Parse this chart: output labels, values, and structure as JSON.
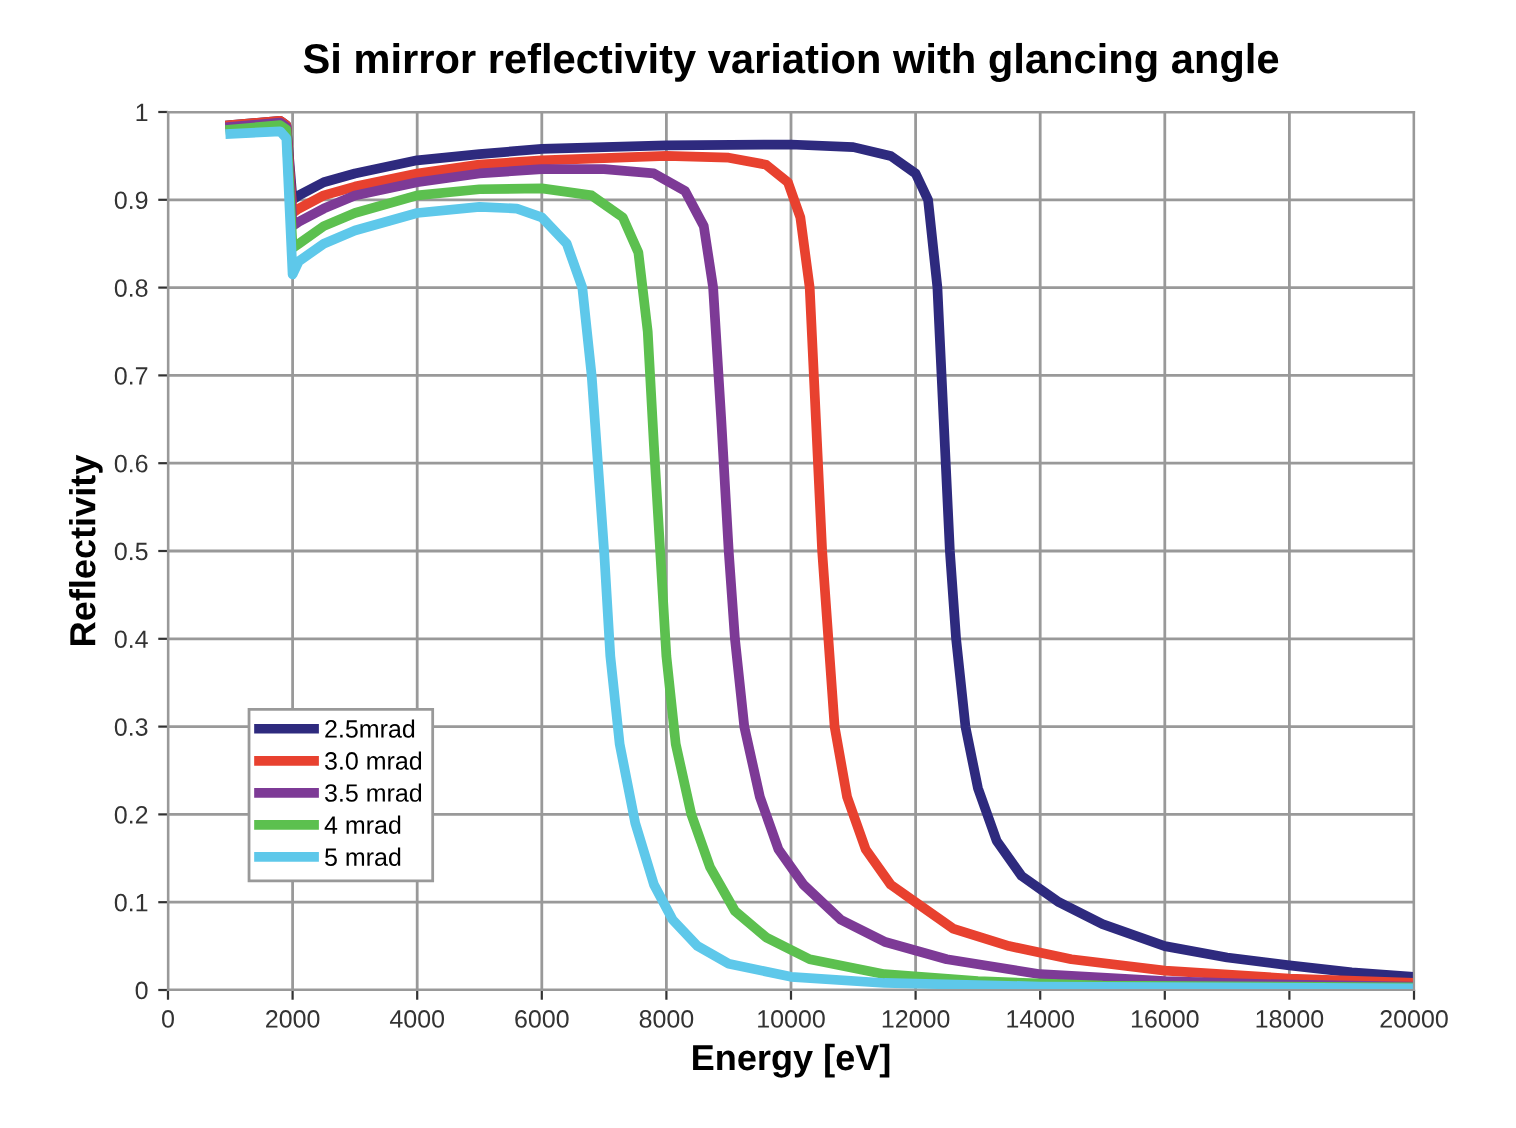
{
  "chart_data": {
    "type": "line",
    "title": "Si mirror reflectivity variation with glancing angle",
    "xlabel": "Energy [eV]",
    "ylabel": "Reflectivity",
    "xlim": [
      0,
      20000
    ],
    "xticks": [
      0,
      2000,
      4000,
      6000,
      8000,
      10000,
      12000,
      14000,
      16000,
      18000,
      20000
    ],
    "ylim": [
      0,
      1
    ],
    "yticks": [
      0,
      0.1,
      0.2,
      0.3,
      0.4,
      0.5,
      0.6,
      0.7,
      0.8,
      0.9,
      1
    ],
    "grid": true,
    "legend": "bottom left",
    "marker": "none",
    "line_style": "solid",
    "series": [
      {
        "name": "2.5mrad",
        "color": "#2e2a7e",
        "x": [
          1000,
          1800,
          1900,
          2000,
          2100,
          2500,
          3000,
          4000,
          5000,
          6000,
          8000,
          10000,
          11000,
          11600,
          12000,
          12200,
          12350,
          12450,
          12550,
          12650,
          12800,
          13000,
          13300,
          13700,
          14300,
          15000,
          16000,
          17000,
          18000,
          19000,
          20000
        ],
        "values": [
          0.985,
          0.99,
          0.985,
          0.9,
          0.905,
          0.92,
          0.93,
          0.945,
          0.952,
          0.958,
          0.962,
          0.963,
          0.96,
          0.95,
          0.93,
          0.9,
          0.8,
          0.65,
          0.5,
          0.4,
          0.3,
          0.23,
          0.17,
          0.13,
          0.1,
          0.075,
          0.05,
          0.037,
          0.028,
          0.02,
          0.015
        ]
      },
      {
        "name": "3.0 mrad",
        "color": "#e8412f",
        "x": [
          1000,
          1800,
          1900,
          2000,
          2100,
          2500,
          3000,
          4000,
          5000,
          6000,
          8000,
          9000,
          9600,
          9950,
          10150,
          10300,
          10400,
          10500,
          10600,
          10700,
          10900,
          11200,
          11600,
          12000,
          12600,
          13500,
          14500,
          16000,
          18000,
          20000
        ],
        "values": [
          0.985,
          0.99,
          0.985,
          0.885,
          0.89,
          0.905,
          0.915,
          0.93,
          0.94,
          0.945,
          0.95,
          0.948,
          0.94,
          0.92,
          0.88,
          0.8,
          0.65,
          0.5,
          0.4,
          0.3,
          0.22,
          0.16,
          0.12,
          0.1,
          0.07,
          0.05,
          0.035,
          0.022,
          0.013,
          0.008
        ]
      },
      {
        "name": "3.5 mrad",
        "color": "#7d3a96",
        "x": [
          1000,
          1800,
          1900,
          2000,
          2100,
          2500,
          3000,
          4000,
          5000,
          6000,
          7000,
          7800,
          8300,
          8600,
          8750,
          8880,
          9000,
          9100,
          9250,
          9500,
          9800,
          10200,
          10800,
          11500,
          12500,
          14000,
          16000,
          18000,
          20000
        ],
        "values": [
          0.983,
          0.988,
          0.983,
          0.87,
          0.875,
          0.89,
          0.905,
          0.92,
          0.93,
          0.935,
          0.935,
          0.93,
          0.91,
          0.87,
          0.8,
          0.65,
          0.5,
          0.4,
          0.3,
          0.22,
          0.16,
          0.12,
          0.08,
          0.055,
          0.035,
          0.018,
          0.01,
          0.006,
          0.004
        ]
      },
      {
        "name": "4 mrad",
        "color": "#5cc04f",
        "x": [
          1000,
          1800,
          1900,
          2000,
          2100,
          2500,
          3000,
          4000,
          5000,
          6000,
          6800,
          7300,
          7550,
          7700,
          7800,
          7900,
          8000,
          8150,
          8400,
          8700,
          9100,
          9600,
          10300,
          11500,
          13000,
          15000,
          20000
        ],
        "values": [
          0.98,
          0.985,
          0.98,
          0.845,
          0.85,
          0.87,
          0.885,
          0.905,
          0.912,
          0.913,
          0.905,
          0.88,
          0.84,
          0.75,
          0.62,
          0.5,
          0.38,
          0.28,
          0.2,
          0.14,
          0.09,
          0.06,
          0.035,
          0.018,
          0.01,
          0.005,
          0.003
        ]
      },
      {
        "name": "5 mrad",
        "color": "#5ec8ea",
        "x": [
          1000,
          1800,
          1900,
          2000,
          2100,
          2500,
          3000,
          4000,
          5000,
          5600,
          6000,
          6400,
          6650,
          6800,
          6900,
          7000,
          7100,
          7250,
          7500,
          7800,
          8100,
          8500,
          9000,
          10000,
          11500,
          14000,
          20000
        ],
        "values": [
          0.975,
          0.978,
          0.97,
          0.815,
          0.83,
          0.85,
          0.865,
          0.885,
          0.892,
          0.89,
          0.88,
          0.85,
          0.8,
          0.7,
          0.6,
          0.5,
          0.38,
          0.28,
          0.19,
          0.12,
          0.08,
          0.05,
          0.03,
          0.015,
          0.008,
          0.004,
          0.002
        ]
      }
    ]
  }
}
